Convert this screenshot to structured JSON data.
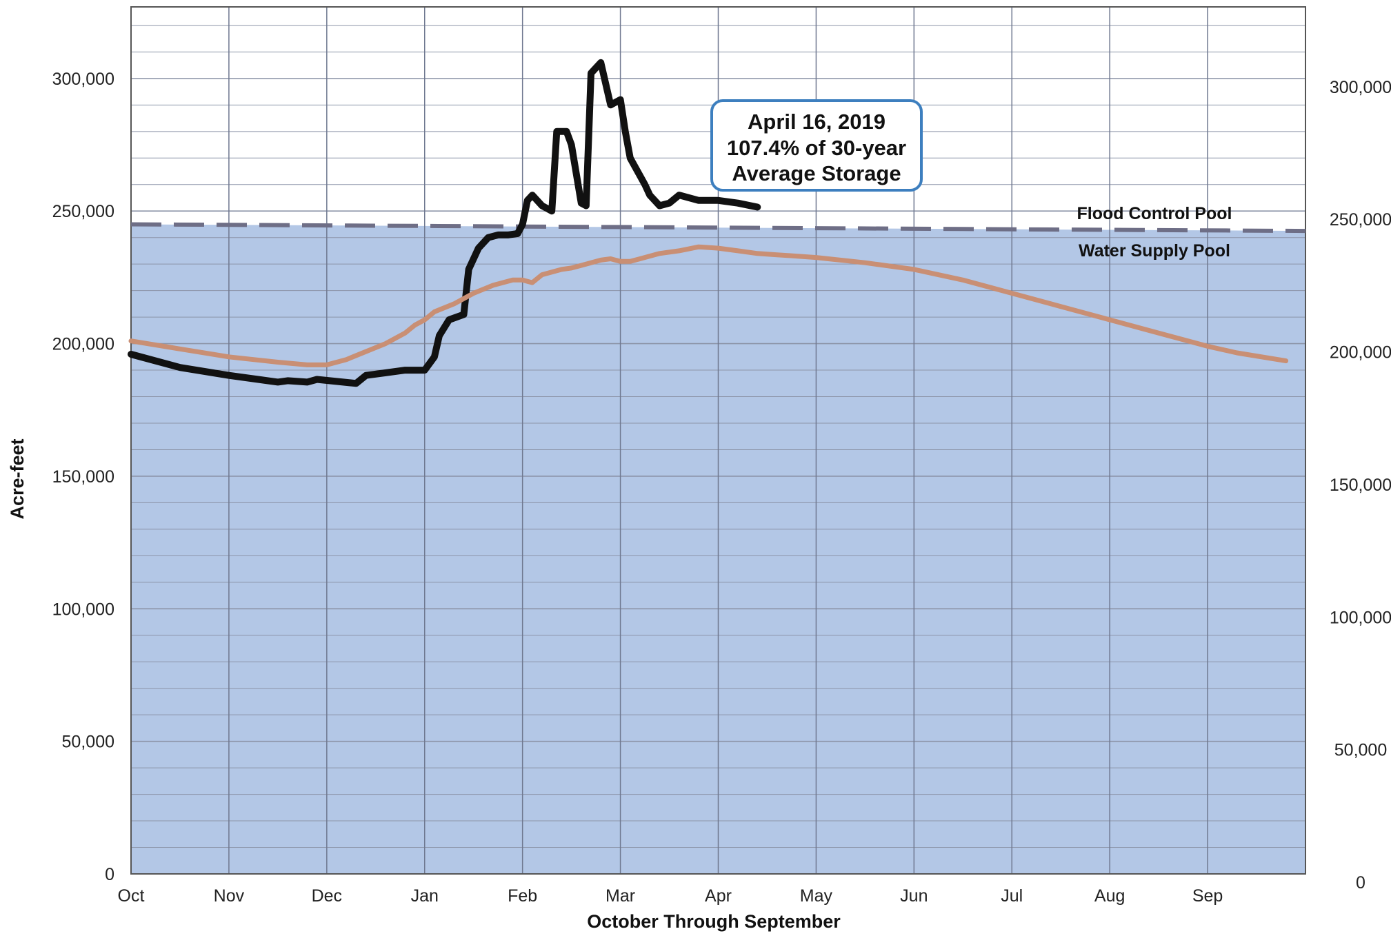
{
  "chart_data": {
    "type": "line",
    "title": "",
    "xlabel": "October Through September",
    "ylabel": "Acre-feet",
    "x_ticks": [
      "Oct",
      "Nov",
      "Dec",
      "Jan",
      "Feb",
      "Mar",
      "Apr",
      "May",
      "Jun",
      "Jul",
      "Aug",
      "Sep"
    ],
    "y_ticks": [
      "0",
      "50,000",
      "100,000",
      "150,000",
      "200,000",
      "250,000",
      "300,000"
    ],
    "y_tick_values": [
      0,
      50000,
      100000,
      150000,
      200000,
      250000,
      300000
    ],
    "y_axis_right": true,
    "ylim": [
      0,
      327000
    ],
    "grid": true,
    "shaded_region": {
      "label": "Water Supply Pool",
      "upper_start": 245000,
      "upper_end": 242500,
      "color": "#b3c7e6"
    },
    "reference_lines": [
      {
        "name": "Flood Control Pool",
        "style": "dashed",
        "color": "#6e6e86",
        "values": [
          245000,
          242500
        ]
      }
    ],
    "pool_labels": {
      "upper": "Flood Control Pool",
      "lower": "Water Supply Pool"
    },
    "annotation": {
      "lines": [
        "April 16, 2019",
        "107.4% of 30-year",
        "Average Storage"
      ],
      "border_color": "#3d7fbf"
    },
    "series": [
      {
        "color": "#111111",
        "x": [
          0.0,
          0.5,
          1.0,
          1.5,
          1.6,
          1.8,
          1.9,
          2.3,
          2.4,
          2.6,
          2.8,
          3.0,
          3.1,
          3.15,
          3.25,
          3.4,
          3.45,
          3.55,
          3.65,
          3.75,
          3.85,
          3.95,
          4.0,
          4.05,
          4.1,
          4.2,
          4.3,
          4.35,
          4.45,
          4.5,
          4.6,
          4.65,
          4.7,
          4.8,
          4.9,
          5.0,
          5.05,
          5.1,
          5.25,
          5.3,
          5.4,
          5.5,
          5.6,
          5.8,
          5.9,
          6.0,
          6.2,
          6.4
        ],
        "values": [
          196000,
          191000,
          188000,
          185500,
          186000,
          185500,
          186500,
          185000,
          188000,
          189000,
          190000,
          190000,
          195000,
          203000,
          209000,
          211000,
          228000,
          236000,
          240000,
          241000,
          241000,
          241500,
          245000,
          254000,
          256000,
          252000,
          250000,
          280000,
          280000,
          275000,
          253000,
          252000,
          302000,
          306000,
          290000,
          292000,
          280000,
          270000,
          260000,
          256000,
          252000,
          253000,
          256000,
          254000,
          254000,
          254000,
          253000,
          251500
        ]
      },
      {
        "color": "#c98f74",
        "x": [
          0.0,
          0.5,
          1.0,
          1.5,
          1.8,
          2.0,
          2.2,
          2.4,
          2.6,
          2.8,
          2.9,
          3.0,
          3.1,
          3.3,
          3.5,
          3.7,
          3.9,
          4.0,
          4.1,
          4.2,
          4.3,
          4.4,
          4.5,
          4.6,
          4.7,
          4.8,
          4.9,
          5.0,
          5.1,
          5.2,
          5.4,
          5.6,
          5.8,
          6.0,
          6.2,
          6.4,
          6.6,
          6.8,
          7.0,
          7.5,
          8.0,
          8.5,
          9.0,
          9.5,
          10.0,
          10.5,
          11.0,
          11.3,
          11.8
        ],
        "values": [
          201000,
          198000,
          195000,
          193000,
          192000,
          192000,
          194000,
          197000,
          200000,
          204000,
          207000,
          209000,
          212000,
          215000,
          219000,
          222000,
          224000,
          224000,
          223000,
          226000,
          227000,
          228000,
          228500,
          229500,
          230500,
          231500,
          232000,
          231000,
          231000,
          232000,
          234000,
          235000,
          236500,
          236000,
          235000,
          234000,
          233500,
          233000,
          232500,
          230500,
          228000,
          224000,
          219000,
          214000,
          209000,
          204000,
          199000,
          196500,
          193500
        ]
      }
    ]
  }
}
